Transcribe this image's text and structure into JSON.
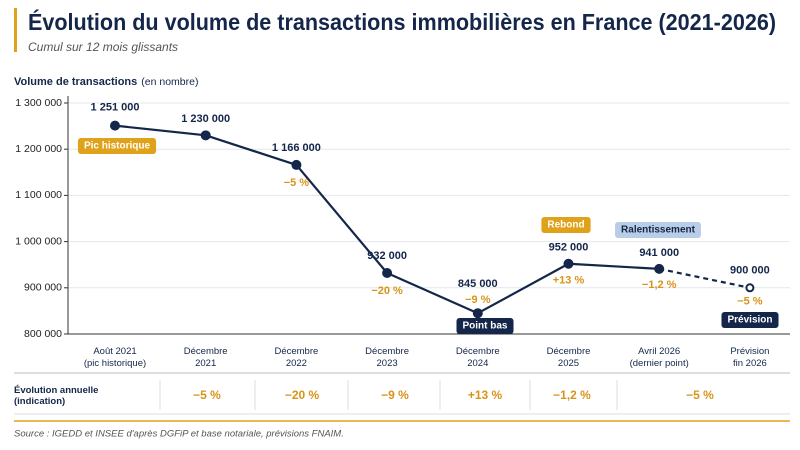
{
  "chart_data": {
    "type": "line",
    "title": "Évolution du volume de transactions immobilières en France (2021-2026)",
    "subtitle": "Cumul sur 12 mois glissants",
    "y_label": "Volume de transactions",
    "y_label_unit": "(en nombre)",
    "categories": [
      "Août 2021\n(pic historique)",
      "Décembre\n2021",
      "Décembre\n2022",
      "Décembre\n2023",
      "Décembre\n2024",
      "Décembre\n2025",
      "Avril 2026\n(dernier point)",
      "Prévision\nfin 2026"
    ],
    "values": [
      1251000,
      1230000,
      1166000,
      932000,
      845000,
      952000,
      941000,
      900000
    ],
    "value_labels": [
      "1 251 000",
      "1 230 000",
      "1 166 000",
      "932 000",
      "845 000",
      "952 000",
      "941 000",
      "900 000"
    ],
    "change_labels": [
      null,
      null,
      "−5 %",
      "−20 %",
      "−9 %",
      "+13 %",
      "−1,2 %",
      "−5 %"
    ],
    "badges": [
      "Pic historique",
      null,
      null,
      null,
      "Point bas",
      "Rebond",
      "Ralentissement",
      "Prévision"
    ],
    "color": "#14264a",
    "ylim": [
      800000,
      1300000
    ],
    "yticks": [
      {
        "value": 800000,
        "label": "800 000"
      },
      {
        "value": 900000,
        "label": "900 000"
      },
      {
        "value": 1000000,
        "label": "1 000 000"
      },
      {
        "value": 1100000,
        "label": "1 100 000"
      },
      {
        "value": 1200000,
        "label": "1 200 000"
      },
      {
        "value": 1300000,
        "label": "1 300 000"
      }
    ],
    "grid": true,
    "annual_table": {
      "label": "Évolution annuelle\n(indication)",
      "cells": [
        "−5 %",
        "−20 %",
        "−9 %",
        "+13 %",
        "−1,2 %",
        "−5 %"
      ]
    },
    "source": "Source : IGEDD et INSEE d'après DGFiP et base notariale, prévisions FNAIM."
  }
}
